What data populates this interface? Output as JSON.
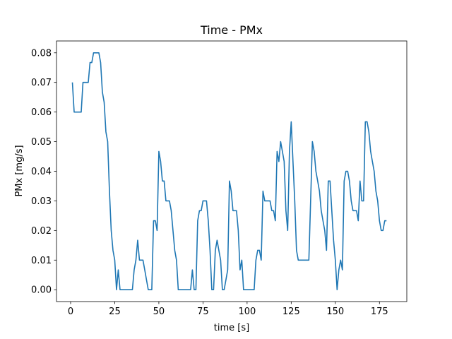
{
  "chart_data": {
    "type": "line",
    "title": "Time - PMx",
    "xlabel": "time [s]",
    "ylabel": "PMx [mg/s]",
    "x": [
      1,
      2,
      3,
      4,
      5,
      6,
      7,
      8,
      9,
      10,
      11,
      12,
      13,
      14,
      15,
      16,
      17,
      18,
      19,
      20,
      21,
      22,
      23,
      24,
      25,
      26,
      27,
      28,
      29,
      30,
      31,
      32,
      33,
      34,
      35,
      36,
      37,
      38,
      39,
      40,
      41,
      42,
      43,
      44,
      45,
      46,
      47,
      48,
      49,
      50,
      51,
      52,
      53,
      54,
      55,
      56,
      57,
      58,
      59,
      60,
      61,
      62,
      63,
      64,
      65,
      66,
      67,
      68,
      69,
      70,
      71,
      72,
      73,
      74,
      75,
      76,
      77,
      78,
      79,
      80,
      81,
      82,
      83,
      84,
      85,
      86,
      87,
      88,
      89,
      90,
      91,
      92,
      93,
      94,
      95,
      96,
      97,
      98,
      99,
      100,
      101,
      102,
      103,
      104,
      105,
      106,
      107,
      108,
      109,
      110,
      111,
      112,
      113,
      114,
      115,
      116,
      117,
      118,
      119,
      120,
      121,
      122,
      123,
      124,
      125,
      126,
      127,
      128,
      129,
      130,
      131,
      132,
      133,
      134,
      135,
      136,
      137,
      138,
      139,
      140,
      141,
      142,
      143,
      144,
      145,
      146,
      147,
      148,
      149,
      150,
      151,
      152,
      153,
      154,
      155,
      156,
      157,
      158,
      159,
      160,
      161,
      162,
      163,
      164,
      165,
      166,
      167,
      168,
      169,
      170,
      171,
      172,
      173,
      174,
      175,
      176,
      177,
      178,
      179
    ],
    "series": [
      {
        "color": "#1f77b4",
        "values": [
          0.07,
          0.06,
          0.06,
          0.06,
          0.06,
          0.06,
          0.07,
          0.07,
          0.07,
          0.07,
          0.0767,
          0.0767,
          0.08,
          0.08,
          0.08,
          0.08,
          0.0767,
          0.0667,
          0.0633,
          0.0533,
          0.05,
          0.0333,
          0.02,
          0.0133,
          0.01,
          0,
          0.0067,
          0,
          0,
          0,
          0,
          0,
          0,
          0,
          0,
          0.0067,
          0.01,
          0.0167,
          0.01,
          0.01,
          0.01,
          0.0067,
          0.0033,
          0,
          0,
          0,
          0.0233,
          0.0233,
          0.02,
          0.0467,
          0.0433,
          0.0367,
          0.0367,
          0.03,
          0.03,
          0.03,
          0.0267,
          0.02,
          0.0133,
          0.01,
          0,
          0,
          0,
          0,
          0,
          0,
          0,
          0,
          0.0067,
          0,
          0,
          0.0233,
          0.0267,
          0.0267,
          0.03,
          0.03,
          0.03,
          0.0233,
          0.0133,
          0,
          0,
          0.0133,
          0.0167,
          0.0133,
          0.01,
          0,
          0,
          0.0033,
          0.0067,
          0.0367,
          0.0333,
          0.0267,
          0.0267,
          0.0267,
          0.02,
          0.0067,
          0.01,
          0,
          0,
          0,
          0,
          0,
          0,
          0,
          0.01,
          0.0133,
          0.0133,
          0.01,
          0.0333,
          0.03,
          0.03,
          0.03,
          0.03,
          0.0267,
          0.0267,
          0.0233,
          0.0467,
          0.0433,
          0.05,
          0.0467,
          0.0433,
          0.0267,
          0.02,
          0.0467,
          0.0567,
          0.0433,
          0.03,
          0.0133,
          0.01,
          0.01,
          0.01,
          0.01,
          0.01,
          0.01,
          0.01,
          0.03,
          0.05,
          0.0467,
          0.04,
          0.0367,
          0.0333,
          0.0267,
          0.0233,
          0.02,
          0.0133,
          0.0367,
          0.0367,
          0.0267,
          0.0167,
          0.01,
          0,
          0.0067,
          0.01,
          0.0067,
          0.0367,
          0.04,
          0.04,
          0.0367,
          0.03,
          0.0267,
          0.0267,
          0.0267,
          0.0233,
          0.0367,
          0.03,
          0.03,
          0.0567,
          0.0567,
          0.0533,
          0.0467,
          0.0433,
          0.04,
          0.0333,
          0.03,
          0.0233,
          0.02,
          0.02,
          0.0233,
          0.0233
        ]
      }
    ],
    "xlim": [
      -8,
      190.5
    ],
    "xticks": [
      0,
      25,
      50,
      75,
      100,
      125,
      150,
      175
    ],
    "ylim": [
      -0.004,
      0.084
    ],
    "yticks": [
      {
        "value": 0,
        "label": "0.00"
      },
      {
        "value": 0.01,
        "label": "0.01"
      },
      {
        "value": 0.02,
        "label": "0.02"
      },
      {
        "value": 0.03,
        "label": "0.03"
      },
      {
        "value": 0.04,
        "label": "0.04"
      },
      {
        "value": 0.05,
        "label": "0.05"
      },
      {
        "value": 0.06,
        "label": "0.06"
      },
      {
        "value": 0.07,
        "label": "0.07"
      },
      {
        "value": 0.08,
        "label": "0.08"
      }
    ],
    "grid": false
  }
}
